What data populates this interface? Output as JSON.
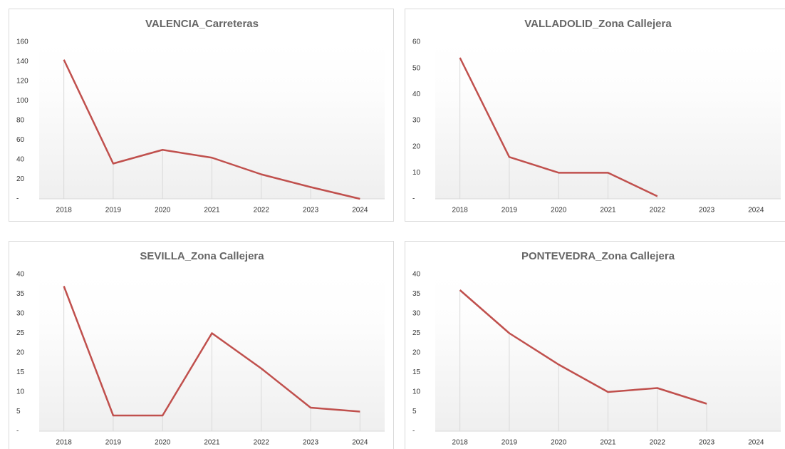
{
  "chart_data": [
    {
      "type": "line",
      "title": "VALENCIA_Carreteras",
      "categories": [
        "2018",
        "2019",
        "2020",
        "2021",
        "2022",
        "2023",
        "2024"
      ],
      "series": [
        {
          "name": "VALENCIA_Carreteras",
          "color": "#c0504d",
          "values": [
            142,
            36,
            50,
            42,
            25,
            12,
            0
          ]
        }
      ],
      "ylim": [
        0,
        160
      ],
      "yticks": [
        {
          "value": 0,
          "label": "-"
        },
        20,
        40,
        60,
        80,
        100,
        120,
        140,
        160
      ],
      "grid": false
    },
    {
      "type": "line",
      "title": "VALLADOLID_Zona Callejera",
      "categories": [
        "2018",
        "2019",
        "2020",
        "2021",
        "2022",
        "2023",
        "2024"
      ],
      "series": [
        {
          "name": "VALLADOLID_Zona Callejera",
          "color": "#c0504d",
          "values": [
            54,
            16,
            10,
            10,
            1,
            null,
            null
          ]
        }
      ],
      "ylim": [
        0,
        60
      ],
      "yticks": [
        {
          "value": 0,
          "label": "-"
        },
        10,
        20,
        30,
        40,
        50,
        60
      ],
      "grid": false
    },
    {
      "type": "line",
      "title": "SEVILLA_Zona Callejera",
      "categories": [
        "2018",
        "2019",
        "2020",
        "2021",
        "2022",
        "2023",
        "2024"
      ],
      "series": [
        {
          "name": "SEVILLA_Zona Callejera",
          "color": "#c0504d",
          "values": [
            37,
            4,
            4,
            25,
            16,
            6,
            5
          ]
        }
      ],
      "ylim": [
        0,
        40
      ],
      "yticks": [
        {
          "value": 0,
          "label": "-"
        },
        5,
        10,
        15,
        20,
        25,
        30,
        35,
        40
      ],
      "grid": false
    },
    {
      "type": "line",
      "title": "PONTEVEDRA_Zona Callejera",
      "categories": [
        "2018",
        "2019",
        "2020",
        "2021",
        "2022",
        "2023",
        "2024"
      ],
      "series": [
        {
          "name": "PONTEVEDRA_Zona Callejera",
          "color": "#c0504d",
          "values": [
            36,
            25,
            17,
            10,
            11,
            7,
            null
          ]
        }
      ],
      "ylim": [
        0,
        40
      ],
      "yticks": [
        {
          "value": 0,
          "label": "-"
        },
        5,
        10,
        15,
        20,
        25,
        30,
        35,
        40
      ],
      "grid": false
    }
  ]
}
